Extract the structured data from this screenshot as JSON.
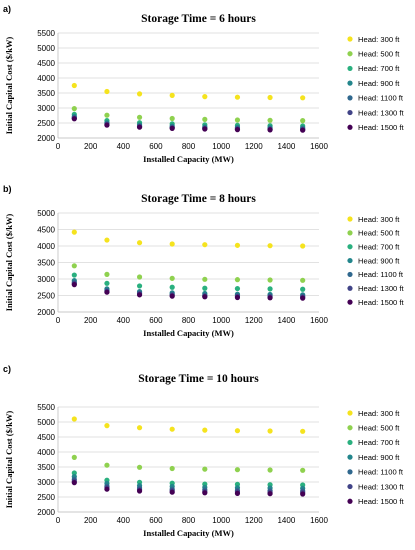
{
  "chart_data": [
    {
      "type": "scatter",
      "panel": "a)",
      "title": "Storage Time = 6 hours",
      "xlabel": "Installed Capacity (MW)",
      "ylabel": "Initial Capital Cost ($/kW)",
      "xlim": [
        0,
        1600
      ],
      "ylim": [
        2000,
        5500
      ],
      "xticks": [
        "0",
        "200",
        "400",
        "600",
        "800",
        "1000",
        "1200",
        "1400",
        "1600"
      ],
      "yticks": [
        "2000",
        "2500",
        "3000",
        "3500",
        "4000",
        "4500",
        "5000",
        "5500"
      ],
      "grid": true,
      "legend_position": "right",
      "x": [
        100,
        300,
        500,
        700,
        900,
        1100,
        1300,
        1500
      ],
      "series": [
        {
          "name": "Head: 300 ft",
          "color": "#f5e31e",
          "values": [
            3750,
            3550,
            3470,
            3420,
            3380,
            3360,
            3350,
            3340
          ]
        },
        {
          "name": "Head: 500 ft",
          "color": "#8fd14f",
          "values": [
            2980,
            2760,
            2690,
            2650,
            2620,
            2600,
            2590,
            2580
          ]
        },
        {
          "name": "Head: 700 ft",
          "color": "#2ab07f",
          "values": [
            2790,
            2580,
            2510,
            2470,
            2440,
            2420,
            2410,
            2400
          ]
        },
        {
          "name": "Head: 900 ft",
          "color": "#23868c",
          "values": [
            2720,
            2510,
            2440,
            2400,
            2370,
            2360,
            2350,
            2340
          ]
        },
        {
          "name": "Head: 1100 ft",
          "color": "#30688e",
          "values": [
            2680,
            2470,
            2400,
            2360,
            2340,
            2320,
            2310,
            2300
          ]
        },
        {
          "name": "Head: 1300 ft",
          "color": "#414487",
          "values": [
            2660,
            2450,
            2380,
            2340,
            2310,
            2300,
            2290,
            2280
          ]
        },
        {
          "name": "Head: 1500 ft",
          "color": "#440154",
          "values": [
            2640,
            2430,
            2360,
            2320,
            2300,
            2280,
            2270,
            2260
          ]
        }
      ]
    },
    {
      "type": "scatter",
      "panel": "b)",
      "title": "Storage Time = 8 hours",
      "xlabel": "Installed Capacity (MW)",
      "ylabel": "Initial Capital Cost ($/kW)",
      "xlim": [
        0,
        1600
      ],
      "ylim": [
        2000,
        5000
      ],
      "xticks": [
        "0",
        "200",
        "400",
        "600",
        "800",
        "1000",
        "1200",
        "1400",
        "1600"
      ],
      "yticks": [
        "2000",
        "2500",
        "3000",
        "3500",
        "4000",
        "4500",
        "5000"
      ],
      "grid": true,
      "legend_position": "right",
      "x": [
        100,
        300,
        500,
        700,
        900,
        1100,
        1300,
        1500
      ],
      "series": [
        {
          "name": "Head: 300 ft",
          "color": "#f5e31e",
          "values": [
            4420,
            4180,
            4100,
            4060,
            4040,
            4020,
            4010,
            4000
          ]
        },
        {
          "name": "Head: 500 ft",
          "color": "#8fd14f",
          "values": [
            3400,
            3140,
            3060,
            3020,
            2990,
            2980,
            2970,
            2960
          ]
        },
        {
          "name": "Head: 700 ft",
          "color": "#2ab07f",
          "values": [
            3120,
            2870,
            2790,
            2750,
            2720,
            2710,
            2700,
            2690
          ]
        },
        {
          "name": "Head: 900 ft",
          "color": "#23868c",
          "values": [
            2950,
            2700,
            2620,
            2580,
            2560,
            2540,
            2530,
            2520
          ]
        },
        {
          "name": "Head: 1100 ft",
          "color": "#30688e",
          "values": [
            2900,
            2660,
            2580,
            2540,
            2510,
            2500,
            2490,
            2480
          ]
        },
        {
          "name": "Head: 1300 ft",
          "color": "#414487",
          "values": [
            2860,
            2620,
            2550,
            2510,
            2480,
            2470,
            2460,
            2450
          ]
        },
        {
          "name": "Head: 1500 ft",
          "color": "#440154",
          "values": [
            2830,
            2600,
            2520,
            2480,
            2460,
            2440,
            2430,
            2420
          ]
        }
      ]
    },
    {
      "type": "scatter",
      "panel": "c)",
      "title": "Storage Time = 10 hours",
      "xlabel": "Installed Capacity (MW)",
      "ylabel": "Initial Capital Cost ($/kW)",
      "xlim": [
        0,
        1600
      ],
      "ylim": [
        2000,
        5500
      ],
      "xticks": [
        "0",
        "200",
        "400",
        "600",
        "800",
        "1000",
        "1200",
        "1400",
        "1600"
      ],
      "yticks": [
        "2000",
        "2500",
        "3000",
        "3500",
        "4000",
        "4500",
        "5000",
        "5500"
      ],
      "grid": true,
      "legend_position": "right",
      "x": [
        100,
        300,
        500,
        700,
        900,
        1100,
        1300,
        1500
      ],
      "series": [
        {
          "name": "Head: 300 ft",
          "color": "#f5e31e",
          "values": [
            5100,
            4880,
            4810,
            4760,
            4730,
            4710,
            4700,
            4690
          ]
        },
        {
          "name": "Head: 500 ft",
          "color": "#8fd14f",
          "values": [
            3820,
            3560,
            3490,
            3450,
            3430,
            3410,
            3400,
            3390
          ]
        },
        {
          "name": "Head: 700 ft",
          "color": "#2ab07f",
          "values": [
            3300,
            3060,
            2990,
            2960,
            2930,
            2920,
            2910,
            2900
          ]
        },
        {
          "name": "Head: 900 ft",
          "color": "#23868c",
          "values": [
            3180,
            2950,
            2880,
            2850,
            2820,
            2810,
            2800,
            2790
          ]
        },
        {
          "name": "Head: 1100 ft",
          "color": "#30688e",
          "values": [
            3090,
            2860,
            2800,
            2760,
            2740,
            2720,
            2710,
            2700
          ]
        },
        {
          "name": "Head: 1300 ft",
          "color": "#414487",
          "values": [
            3030,
            2810,
            2740,
            2710,
            2680,
            2670,
            2660,
            2650
          ]
        },
        {
          "name": "Head: 1500 ft",
          "color": "#440154",
          "values": [
            2980,
            2760,
            2700,
            2660,
            2640,
            2620,
            2610,
            2600
          ]
        }
      ]
    }
  ]
}
